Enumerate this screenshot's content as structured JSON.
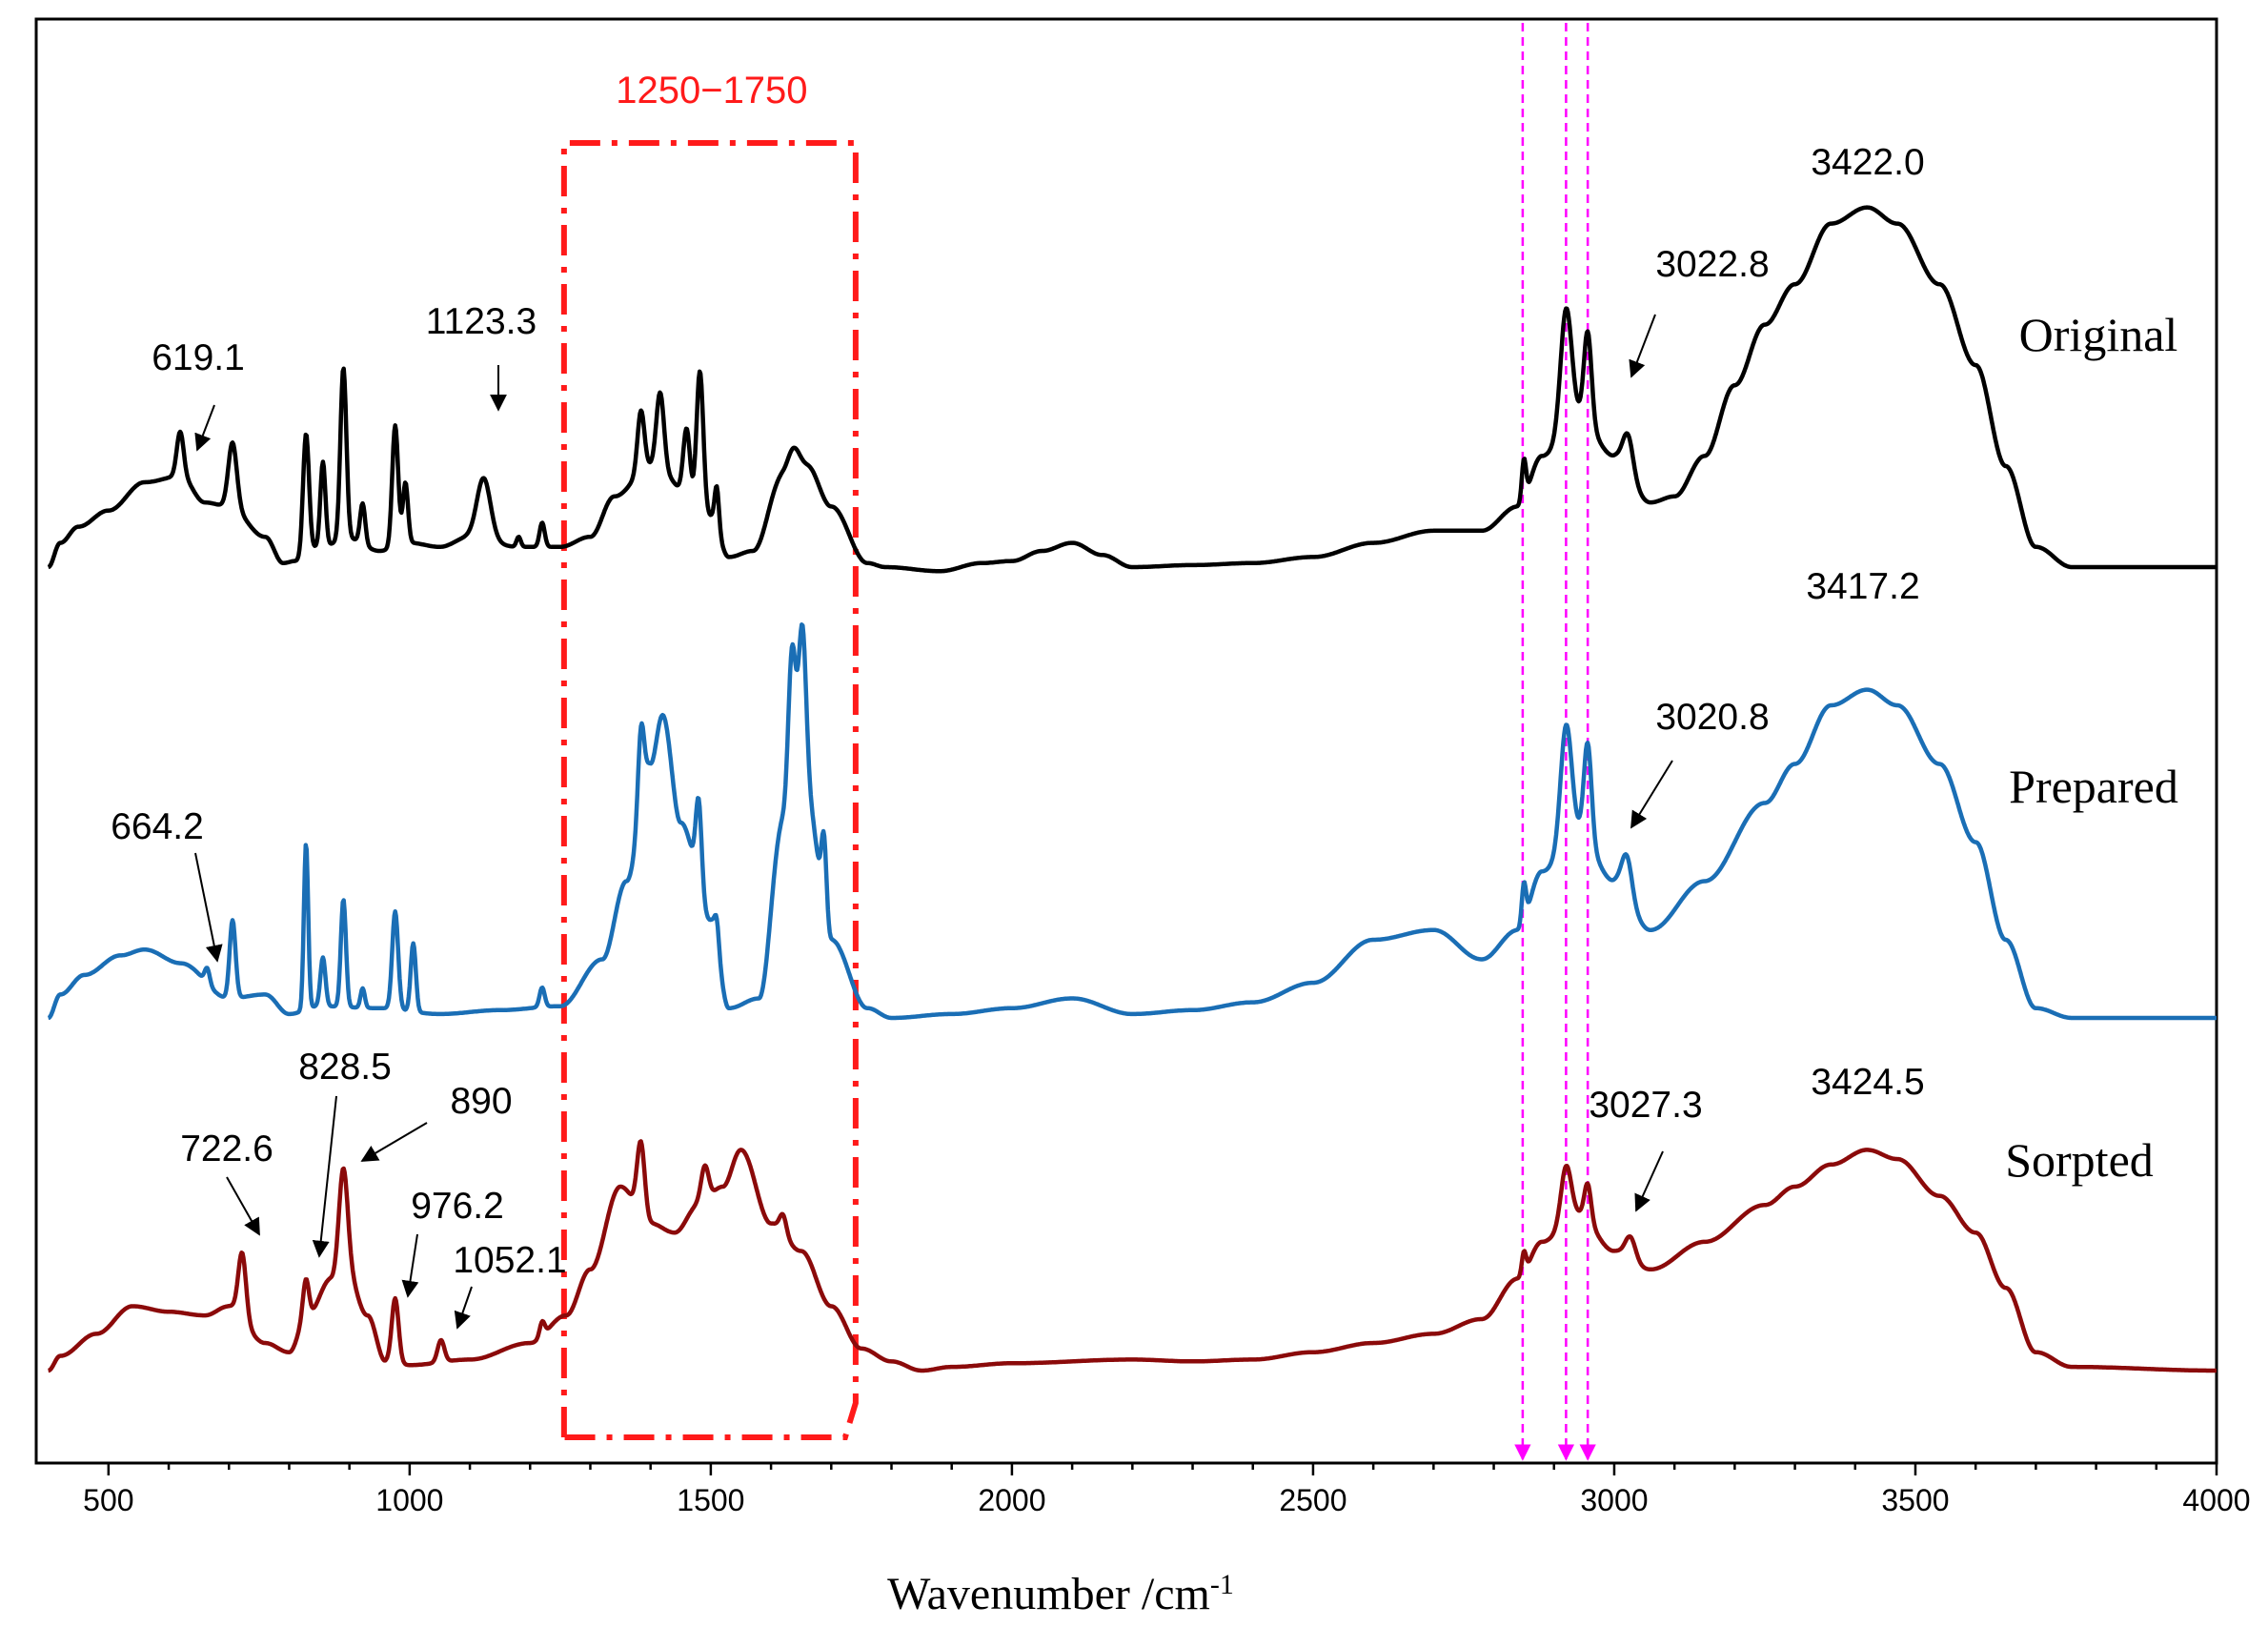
{
  "chart_data": {
    "type": "line",
    "title": "",
    "xlabel": "Wavenumber /cm",
    "xlabel_superscript": "-1",
    "ylabel": "",
    "xlim": [
      380,
      4000
    ],
    "xticks": [
      500,
      1000,
      1500,
      2000,
      2500,
      3000,
      3500,
      4000
    ],
    "xtick_labels": [
      "500",
      "1000",
      "1500",
      "2000",
      "2500",
      "3000",
      "3500",
      "4000"
    ],
    "y_axis_shown": false,
    "grid": false,
    "region": {
      "label": "1250−1750",
      "x_start": 1250,
      "x_end": 1750,
      "color": "#ff1a1a"
    },
    "reference_lines": {
      "positions": [
        2848,
        2920,
        2956
      ],
      "color": "#ff00ff"
    },
    "series": [
      {
        "name": "Original",
        "color": "#000000",
        "offset": 2.0,
        "peaks": [
          {
            "x": 619.1,
            "label": "619.1",
            "arrow": true
          },
          {
            "x": 1123.3,
            "label": "1123.3",
            "arrow": true
          },
          {
            "x": 3022.8,
            "label": "3022.8",
            "arrow": true
          },
          {
            "x": 3422.0,
            "label": "3422.0",
            "arrow": false
          }
        ]
      },
      {
        "name": "Prepared",
        "color": "#1a6eb5",
        "offset": 1.0,
        "peaks": [
          {
            "x": 664.2,
            "label": "664.2",
            "arrow": true
          },
          {
            "x": 3020.8,
            "label": "3020.8",
            "arrow": true
          },
          {
            "x": 3417.2,
            "label": "3417.2",
            "arrow": false
          }
        ]
      },
      {
        "name": "Sorpted",
        "color": "#8b0a0a",
        "offset": 0.0,
        "peaks": [
          {
            "x": 722.6,
            "label": "722.6",
            "arrow": true
          },
          {
            "x": 828.5,
            "label": "828.5",
            "arrow": true
          },
          {
            "x": 890,
            "label": "890",
            "arrow": true
          },
          {
            "x": 976.2,
            "label": "976.2",
            "arrow": true
          },
          {
            "x": 1052.1,
            "label": "1052.1",
            "arrow": true
          },
          {
            "x": 3027.3,
            "label": "3027.3",
            "arrow": true
          },
          {
            "x": 3424.5,
            "label": "3424.5",
            "arrow": false
          }
        ]
      }
    ]
  }
}
